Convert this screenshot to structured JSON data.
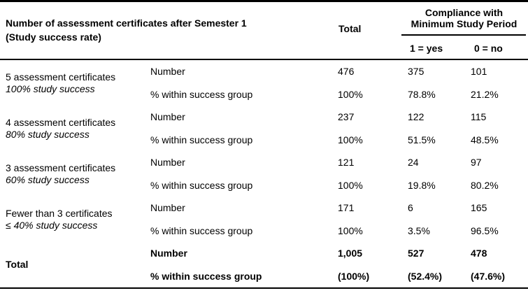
{
  "header": {
    "col1_line1": "Number of assessment certificates after Semester 1",
    "col1_line2": "(Study success rate)",
    "total": "Total",
    "compliance_line1": "Compliance with",
    "compliance_line2": "Minimum Study Period",
    "sub_yes": "1 = yes",
    "sub_no": "0 = no"
  },
  "stat_labels": {
    "number": "Number",
    "percent": "% within success group"
  },
  "groups": [
    {
      "label": "5 assessment certificates",
      "sublabel": "100% study success",
      "number": {
        "total": "476",
        "yes": "375",
        "no": "101"
      },
      "percent": {
        "total": "100%",
        "yes": "78.8%",
        "no": "21.2%"
      }
    },
    {
      "label": "4 assessment certificates",
      "sublabel": "80% study success",
      "number": {
        "total": "237",
        "yes": "122",
        "no": "115"
      },
      "percent": {
        "total": "100%",
        "yes": "51.5%",
        "no": "48.5%"
      }
    },
    {
      "label": "3 assessment certificates",
      "sublabel": "60% study success",
      "number": {
        "total": "121",
        "yes": "24",
        "no": "97"
      },
      "percent": {
        "total": "100%",
        "yes": "19.8%",
        "no": "80.2%"
      }
    },
    {
      "label": "Fewer than 3 certificates",
      "sublabel": "≤ 40% study success",
      "number": {
        "total": "171",
        "yes": "6",
        "no": "165"
      },
      "percent": {
        "total": "100%",
        "yes": "3.5%",
        "no": "96.5%"
      }
    }
  ],
  "total_row": {
    "label": "Total",
    "number": {
      "total": "1,005",
      "yes": "527",
      "no": "478"
    },
    "percent": {
      "total": "(100%)",
      "yes": "(52.4%)",
      "no": "(47.6%)"
    }
  },
  "colors": {
    "rule": "#000000",
    "text": "#000000",
    "background": "#ffffff"
  }
}
